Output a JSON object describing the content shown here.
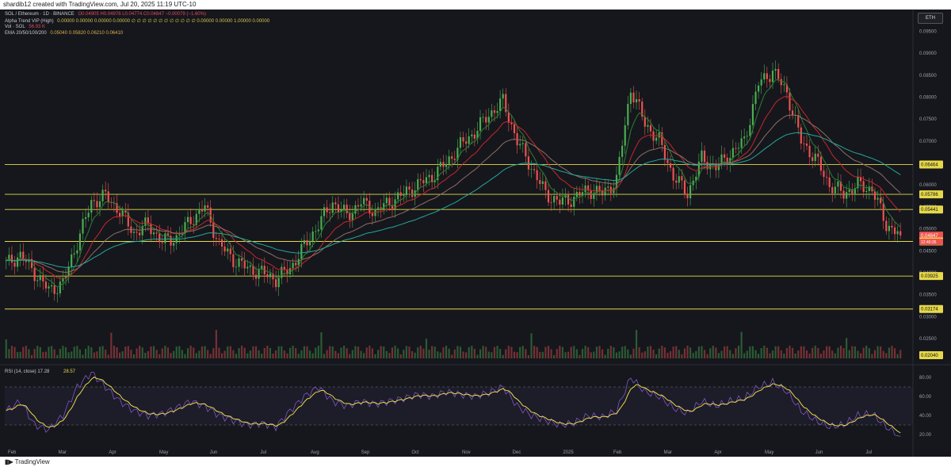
{
  "header": {
    "created_by": "shardib12 created with TradingView.com, Jul 20, 2025 11:19 UTC-10"
  },
  "legend": {
    "symbol": "SOL / Ethereum · 1D · BINANCE",
    "ohlc": "O0.04905 H0.04976 L0.04774 C0.04847 −0.00079 (−1.60%)",
    "ohlc_color": "#e04a5a",
    "alpha_trend": "Alpha Trend VIP (High)",
    "alpha_values": "0.00000 0.00000 0.00000 0.00000 ∅ ∅ ∅ ∅ ∅ ∅ ∅ ∅ ∅ ∅ ∅ ∅ 0.00000 0.00000 1.00000 0.00000",
    "vol": "Vol · SOL",
    "vol_value": "56.93 K",
    "ema": "EMA 20/50/100/200",
    "ema_values": "0.05040 0.05820 0.06210 0.06410"
  },
  "eth_button": "ETH",
  "colors": {
    "background": "#15171d",
    "up": "#4caf50",
    "down": "#ef5350",
    "level_line": "#e6d84a",
    "ema20": "#2e7d32",
    "ema50": "#c62828",
    "ema100": "#8d6e63",
    "ema200": "#26a69a",
    "rsi": "#7e57c2",
    "rsi_ma": "#e6d84a",
    "signal_label": "#e6d84a",
    "reentry_label": "#26a69a"
  },
  "price_axis": {
    "ticks": [
      "0.09500",
      "0.09000",
      "0.08500",
      "0.08000",
      "0.07500",
      "0.07000",
      "0.06500",
      "0.06000",
      "0.05500",
      "0.05000",
      "0.04500",
      "0.04000",
      "0.03500",
      "0.03000",
      "0.02500"
    ],
    "level_labels": [
      "0.06464",
      "0.05786",
      "0.05441",
      "0.04847",
      "0.04713",
      "0.03925",
      "0.03174",
      "0.02040"
    ],
    "current_price": "0.04847",
    "countdown": "12:40:35"
  },
  "rsi_axis": {
    "ticks": [
      "80.00",
      "60.00",
      "40.00",
      "20.00"
    ]
  },
  "rsi_legend": {
    "label": "RSI (14, close)",
    "value1": "17.28",
    "value2": "28.57"
  },
  "time_axis": {
    "labels": [
      "Feb",
      "Mar",
      "Apr",
      "May",
      "Jun",
      "Jul",
      "Aug",
      "Sep",
      "Oct",
      "Nov",
      "Dec",
      "2025",
      "Feb",
      "Mar",
      "Apr",
      "May",
      "Jun",
      "Jul"
    ]
  },
  "footer": {
    "logo_text": "TradingView"
  },
  "chart_data": {
    "type": "candlestick",
    "title": "SOL / Ethereum · 1D · BINANCE",
    "ylim": [
      0.0205,
      0.0985
    ],
    "horizontal_levels": [
      0.06464,
      0.05786,
      0.05441,
      0.04713,
      0.03925,
      0.03174
    ],
    "months": [
      "Feb",
      "Mar",
      "Apr",
      "May",
      "Jun",
      "Jul",
      "Aug",
      "Sep",
      "Oct",
      "Nov",
      "Dec",
      "2025",
      "Feb",
      "Mar",
      "Apr",
      "May",
      "Jun",
      "Jul"
    ],
    "close_series": [
      0.042,
      0.044,
      0.04,
      0.036,
      0.0375,
      0.047,
      0.056,
      0.0575,
      0.054,
      0.049,
      0.051,
      0.047,
      0.048,
      0.052,
      0.055,
      0.0465,
      0.043,
      0.041,
      0.04,
      0.0385,
      0.041,
      0.046,
      0.051,
      0.056,
      0.053,
      0.056,
      0.054,
      0.056,
      0.058,
      0.06,
      0.062,
      0.065,
      0.069,
      0.072,
      0.076,
      0.079,
      0.07,
      0.064,
      0.058,
      0.056,
      0.057,
      0.059,
      0.058,
      0.061,
      0.082,
      0.074,
      0.07,
      0.062,
      0.058,
      0.066,
      0.064,
      0.067,
      0.07,
      0.083,
      0.086,
      0.081,
      0.07,
      0.066,
      0.06,
      0.058,
      0.06,
      0.059,
      0.051,
      0.0485
    ],
    "rsi_series": [
      45,
      55,
      30,
      25,
      40,
      70,
      85,
      70,
      55,
      45,
      40,
      42,
      48,
      55,
      50,
      40,
      35,
      30,
      32,
      28,
      45,
      60,
      70,
      55,
      50,
      55,
      52,
      55,
      58,
      62,
      60,
      65,
      62,
      60,
      64,
      70,
      50,
      40,
      35,
      30,
      32,
      40,
      38,
      45,
      80,
      65,
      60,
      48,
      42,
      55,
      50,
      55,
      58,
      70,
      75,
      65,
      45,
      35,
      28,
      30,
      40,
      42,
      28,
      18
    ]
  }
}
